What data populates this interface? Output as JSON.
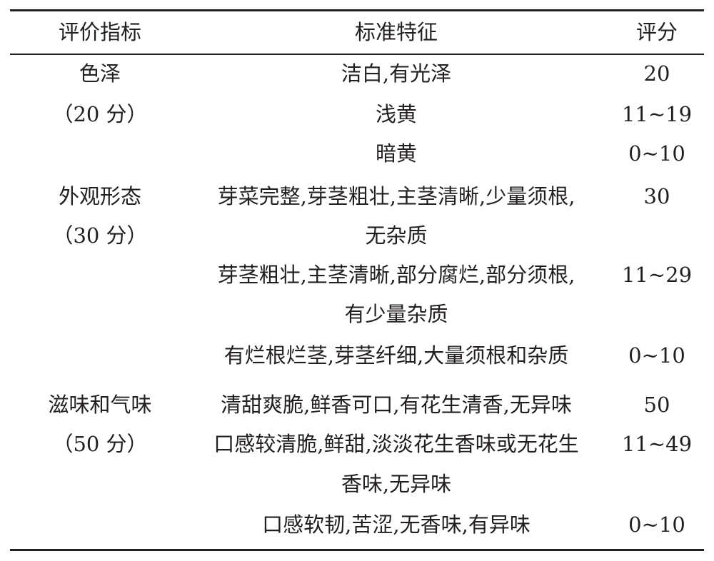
{
  "headers": {
    "indicator": "评价指标",
    "standard": "标准特征",
    "score": "评分"
  },
  "groups": [
    {
      "indicator": "色泽",
      "max": "（20 分）",
      "rows": [
        {
          "lines": [
            "洁白,有光泽"
          ],
          "score": "20"
        },
        {
          "lines": [
            "浅黄"
          ],
          "score": "11~19"
        },
        {
          "lines": [
            "暗黄"
          ],
          "score": "0~10"
        }
      ]
    },
    {
      "indicator": "外观形态",
      "max": "（30 分）",
      "rows": [
        {
          "lines": [
            "芽菜完整,芽茎粗壮,主茎清晰,少量须根,",
            "无杂质"
          ],
          "score": "30"
        },
        {
          "lines": [
            "芽茎粗壮,主茎清晰,部分腐烂,部分须根,",
            "有少量杂质"
          ],
          "score": "11~29"
        },
        {
          "lines": [
            "有烂根烂茎,芽茎纤细,大量须根和杂质"
          ],
          "score": "0~10"
        }
      ]
    },
    {
      "indicator": "滋味和气味",
      "max": "（50 分）",
      "rows": [
        {
          "lines": [
            "清甜爽脆,鲜香可口,有花生清香,无异味"
          ],
          "score": "50"
        },
        {
          "lines": [
            "口感较清脆,鲜甜,淡淡花生香味或无花生",
            "香味,无异味"
          ],
          "score": "11~49"
        },
        {
          "lines": [
            "口感软韧,苦涩,无香味,有异味"
          ],
          "score": "0~10"
        }
      ]
    }
  ]
}
